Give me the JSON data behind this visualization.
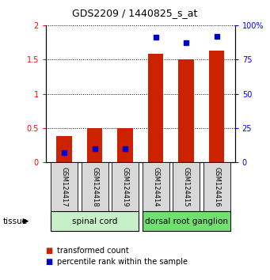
{
  "title": "GDS2209 / 1440825_s_at",
  "samples": [
    "GSM124417",
    "GSM124418",
    "GSM124419",
    "GSM124414",
    "GSM124415",
    "GSM124416"
  ],
  "red_values": [
    0.38,
    0.5,
    0.5,
    1.58,
    1.5,
    1.63
  ],
  "blue_pct": [
    7,
    10,
    10,
    91,
    87,
    92
  ],
  "ylim_left": [
    0,
    2
  ],
  "ylim_right": [
    0,
    100
  ],
  "yticks_left": [
    0,
    0.5,
    1.0,
    1.5,
    2.0
  ],
  "yticks_right": [
    0,
    25,
    50,
    75,
    100
  ],
  "ytick_labels_left": [
    "0",
    "0.5",
    "1",
    "1.5",
    "2"
  ],
  "ytick_labels_right": [
    "0",
    "25",
    "50",
    "75",
    "100%"
  ],
  "tissue_groups": [
    {
      "label": "spinal cord",
      "samples": [
        0,
        1,
        2
      ],
      "color": "#c8f0c8"
    },
    {
      "label": "dorsal root ganglion",
      "samples": [
        3,
        4,
        5
      ],
      "color": "#70e070"
    }
  ],
  "bar_color": "#cc2200",
  "dot_color": "#0000cc",
  "bar_width": 0.5,
  "bg_color": "#ffffff",
  "plot_bg": "#ffffff",
  "tick_label_bg": "#d8d8d8",
  "tissue_label": "tissue",
  "legend_red": "transformed count",
  "legend_blue": "percentile rank within the sample"
}
